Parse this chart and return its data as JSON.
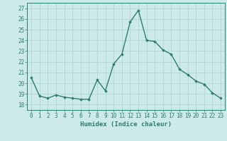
{
  "x": [
    0,
    1,
    2,
    3,
    4,
    5,
    6,
    7,
    8,
    9,
    10,
    11,
    12,
    13,
    14,
    15,
    16,
    17,
    18,
    19,
    20,
    21,
    22,
    23
  ],
  "y": [
    20.5,
    18.8,
    18.6,
    18.9,
    18.7,
    18.6,
    18.5,
    18.5,
    20.3,
    19.3,
    21.8,
    22.7,
    25.7,
    26.8,
    24.0,
    23.9,
    23.1,
    22.7,
    21.3,
    20.8,
    20.2,
    19.9,
    19.1,
    18.6
  ],
  "line_color": "#2e7d6e",
  "marker": "D",
  "markersize": 1.8,
  "linewidth": 1.0,
  "bg_color": "#cceaea",
  "grid_color": "#b0d0d0",
  "xlabel": "Humidex (Indice chaleur)",
  "ylim": [
    17.5,
    27.5
  ],
  "xlim": [
    -0.5,
    23.5
  ],
  "yticks": [
    18,
    19,
    20,
    21,
    22,
    23,
    24,
    25,
    26,
    27
  ],
  "xticks": [
    0,
    1,
    2,
    3,
    4,
    5,
    6,
    7,
    8,
    9,
    10,
    11,
    12,
    13,
    14,
    15,
    16,
    17,
    18,
    19,
    20,
    21,
    22,
    23
  ],
  "tick_color": "#2e7d6e",
  "label_fontsize": 6.5,
  "tick_fontsize": 5.5
}
